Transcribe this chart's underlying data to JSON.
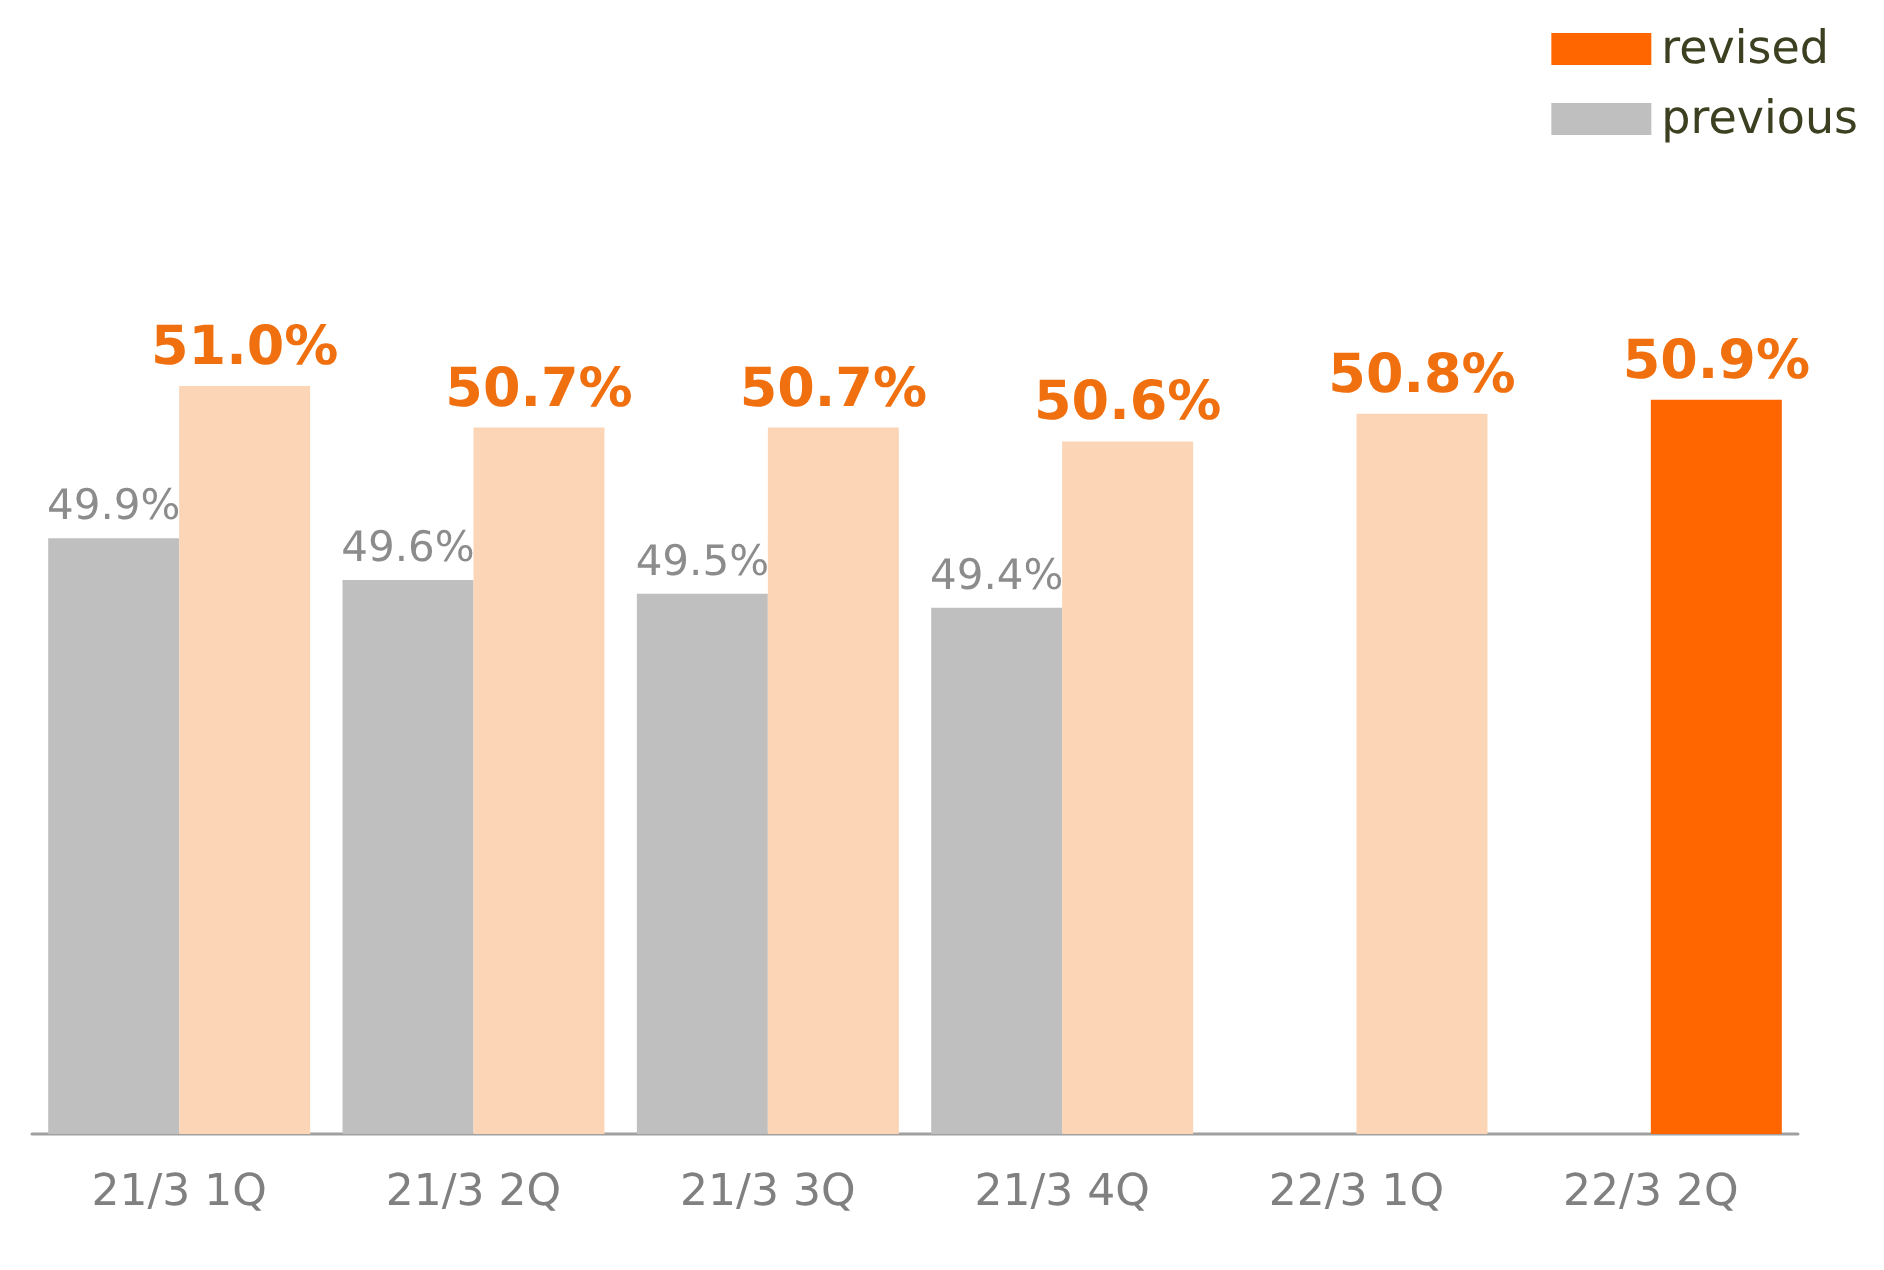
{
  "chart_data": {
    "type": "bar",
    "categories": [
      "21/3 1Q",
      "21/3 2Q",
      "21/3 3Q",
      "21/3 4Q",
      "22/3 1Q",
      "22/3 2Q"
    ],
    "series": [
      {
        "name": "previous",
        "color": "#bfbfbf",
        "colors": [
          "#bfbfbf",
          "#bfbfbf",
          "#bfbfbf",
          "#bfbfbf",
          "#bfbfbf",
          "#bfbfbf"
        ],
        "values": [
          49.9,
          49.6,
          49.5,
          49.4,
          null,
          null
        ],
        "value_labels": [
          "49.9%",
          "49.6%",
          "49.5%",
          "49.4%",
          null,
          null
        ]
      },
      {
        "name": "revised",
        "color": "#ff6600",
        "colors": [
          "#fbd5b5",
          "#fbd5b5",
          "#fbd5b5",
          "#fbd5b5",
          "#fbd5b5",
          "#ff6600"
        ],
        "values": [
          51.0,
          50.7,
          50.7,
          50.6,
          50.8,
          50.9
        ],
        "value_labels": [
          "51.0%",
          "50.7%",
          "50.7%",
          "50.6%",
          "50.8%",
          "50.9%"
        ]
      }
    ],
    "ylim": [
      45.6,
      51.0
    ],
    "tick_labels": "x",
    "grid": false,
    "legend": "top right"
  }
}
